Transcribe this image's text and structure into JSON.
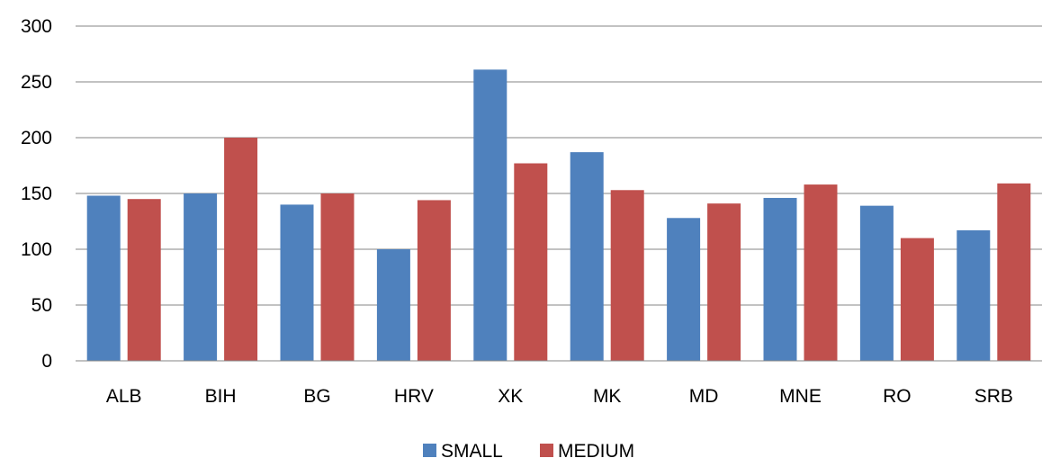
{
  "chart_data": {
    "type": "bar",
    "title": "",
    "xlabel": "",
    "ylabel": "",
    "categories": [
      "ALB",
      "BIH",
      "BG",
      "HRV",
      "XK",
      "MK",
      "MD",
      "MNE",
      "RO",
      "SRB"
    ],
    "series": [
      {
        "name": "SMALL",
        "color": "#4F81BD",
        "values": [
          148,
          150,
          140,
          100,
          261,
          187,
          128,
          146,
          139,
          117
        ]
      },
      {
        "name": "MEDIUM",
        "color": "#C0504D",
        "values": [
          145,
          200,
          150,
          144,
          177,
          153,
          141,
          158,
          110,
          159
        ]
      }
    ],
    "ylim": [
      0,
      300
    ],
    "yticks": [
      0,
      50,
      100,
      150,
      200,
      250,
      300
    ],
    "grid": true,
    "legend_position": "bottom"
  }
}
